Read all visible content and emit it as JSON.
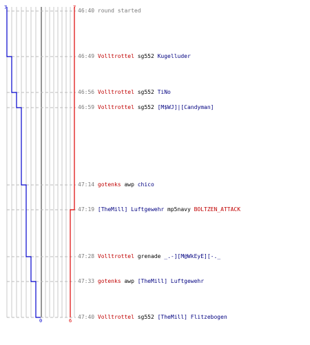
{
  "colors": {
    "team_blue": "#0000cc",
    "team_red": "#dd0000",
    "event_red": "#c00000",
    "event_blue": "#000080",
    "grid": "#c8c8c8",
    "dashed": "#bbbbbb",
    "time": "#7a7a7a"
  },
  "scores": {
    "blue_start": "7",
    "red_start": "7",
    "blue_end": "0",
    "red_end": "6"
  },
  "events": [
    {
      "time": "46:40",
      "blue_alive": 7,
      "red_alive": 7,
      "parts": [
        {
          "text": "round started",
          "color": "gray"
        }
      ]
    },
    {
      "time": "46:49",
      "blue_alive": 6,
      "red_alive": 7,
      "parts": [
        {
          "text": "Volltrottel",
          "color": "red"
        },
        {
          "text": " sg552 ",
          "color": "black"
        },
        {
          "text": "Kugelluder",
          "color": "blue"
        }
      ]
    },
    {
      "time": "46:56",
      "blue_alive": 5,
      "red_alive": 7,
      "parts": [
        {
          "text": "Volltrottel",
          "color": "red"
        },
        {
          "text": " sg552 ",
          "color": "black"
        },
        {
          "text": "TiNo",
          "color": "blue"
        }
      ]
    },
    {
      "time": "46:59",
      "blue_alive": 4,
      "red_alive": 7,
      "parts": [
        {
          "text": "Volltrottel",
          "color": "red"
        },
        {
          "text": " sg552 ",
          "color": "black"
        },
        {
          "text": "[M$WJ]|[Candyman]",
          "color": "blue"
        }
      ]
    },
    {
      "time": "47:14",
      "blue_alive": 3,
      "red_alive": 7,
      "parts": [
        {
          "text": "gotenks",
          "color": "red"
        },
        {
          "text": " awp ",
          "color": "black"
        },
        {
          "text": "chico",
          "color": "blue"
        }
      ]
    },
    {
      "time": "47:19",
      "blue_alive": 3,
      "red_alive": 6,
      "parts": [
        {
          "text": "[TheMill] Luftgewehr",
          "color": "blue"
        },
        {
          "text": " mp5navy ",
          "color": "black"
        },
        {
          "text": "BOLTZEN_ATTACK",
          "color": "red"
        }
      ]
    },
    {
      "time": "47:28",
      "blue_alive": 2,
      "red_alive": 6,
      "parts": [
        {
          "text": "Volltrottel",
          "color": "red"
        },
        {
          "text": " grenade ",
          "color": "black"
        },
        {
          "text": "_.-][M@WkEyE][-._",
          "color": "blue"
        }
      ]
    },
    {
      "time": "47:33",
      "blue_alive": 1,
      "red_alive": 6,
      "parts": [
        {
          "text": "gotenks",
          "color": "red"
        },
        {
          "text": " awp ",
          "color": "black"
        },
        {
          "text": "[TheMill] Luftgewehr",
          "color": "blue"
        }
      ]
    },
    {
      "time": "47:40",
      "blue_alive": 0,
      "red_alive": 6,
      "parts": [
        {
          "text": "Volltrottel",
          "color": "red"
        },
        {
          "text": " sg552 ",
          "color": "black"
        },
        {
          "text": "[TheMill] Flitzebogen",
          "color": "blue"
        }
      ]
    }
  ]
}
